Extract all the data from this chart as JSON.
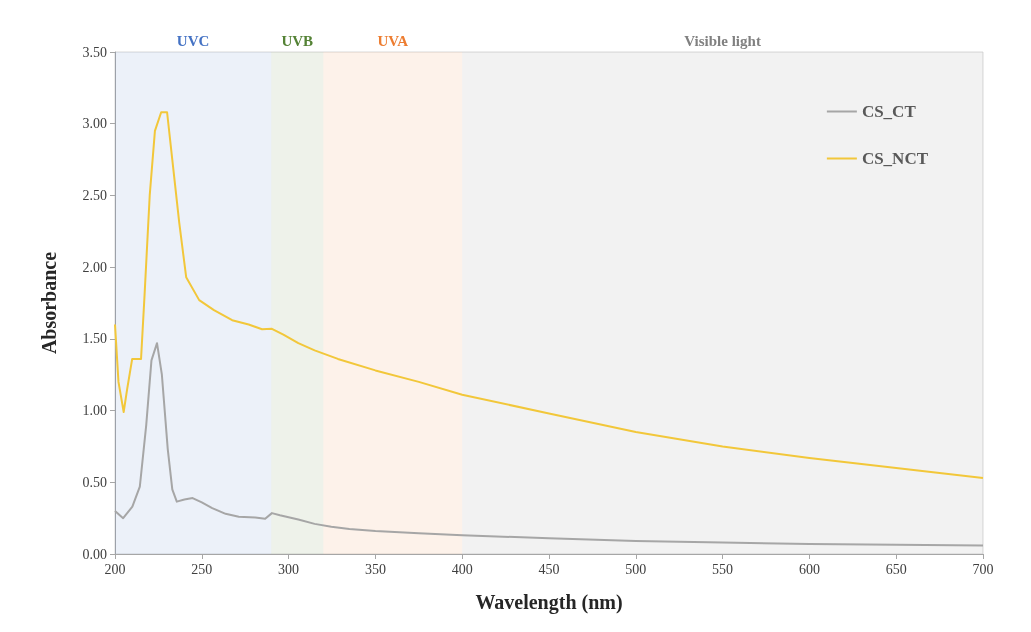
{
  "chart_data": {
    "type": "line",
    "xlabel": "Wavelength (nm)",
    "ylabel": "Absorbance",
    "xlim": [
      200,
      700
    ],
    "xticks": [
      200,
      250,
      300,
      350,
      400,
      450,
      500,
      550,
      600,
      650,
      700
    ],
    "ylim": [
      0,
      3.5
    ],
    "yticks": [
      {
        "value": 0,
        "label": "0.00"
      },
      {
        "value": 0.5,
        "label": "0.50"
      },
      {
        "value": 1,
        "label": "1.00"
      },
      {
        "value": 1.5,
        "label": "1.50"
      },
      {
        "value": 2,
        "label": "2.00"
      },
      {
        "value": 2.5,
        "label": "2.50"
      },
      {
        "value": 3,
        "label": "3.00"
      },
      {
        "value": 3.5,
        "label": "3.50"
      }
    ],
    "grid": false,
    "legend": "top right",
    "marker": "none",
    "line_style": "solid",
    "bands": [
      {
        "axis": "x",
        "from": 200,
        "to": 290,
        "label": "UVC",
        "color": "#4472c4"
      },
      {
        "axis": "x",
        "from": 290,
        "to": 320,
        "label": "UVB",
        "color": "#548235"
      },
      {
        "axis": "x",
        "from": 320,
        "to": 400,
        "label": "UVA",
        "color": "#ed7d31"
      },
      {
        "axis": "x",
        "from": 400,
        "to": 700,
        "label": "Visible light",
        "color": "#808080"
      }
    ],
    "series": [
      {
        "name": "CS_CT",
        "color": "#a6a6a6",
        "x": [
          200,
          204.7,
          210,
          214.3,
          218,
          221,
          224.2,
          227,
          230.4,
          233,
          235.6,
          240,
          244.7,
          250,
          256,
          263.7,
          271.3,
          280.8,
          286.5,
          290.4,
          295,
          305.6,
          315,
          324.6,
          335,
          350,
          375,
          400,
          450,
          500,
          550,
          600,
          650,
          700
        ],
        "values": [
          0.3,
          0.25,
          0.33,
          0.47,
          0.9,
          1.35,
          1.47,
          1.25,
          0.73,
          0.45,
          0.365,
          0.38,
          0.39,
          0.36,
          0.32,
          0.28,
          0.26,
          0.255,
          0.245,
          0.285,
          0.27,
          0.24,
          0.21,
          0.19,
          0.175,
          0.16,
          0.145,
          0.13,
          0.11,
          0.09,
          0.08,
          0.07,
          0.065,
          0.06
        ]
      },
      {
        "name": "CS_NCT",
        "color": "#f2c73a",
        "x": [
          200,
          202,
          205,
          207,
          209.9,
          215,
          217,
          220,
          223,
          226.6,
          230,
          233,
          237,
          241,
          248.5,
          257,
          267.5,
          277,
          284.7,
          290.4,
          297,
          305.6,
          315,
          328.4,
          350,
          375,
          400,
          450,
          500,
          550,
          600,
          650,
          700
        ],
        "values": [
          1.6,
          1.2,
          0.99,
          1.15,
          1.36,
          1.36,
          1.8,
          2.5,
          2.95,
          3.08,
          3.08,
          2.75,
          2.31,
          1.93,
          1.77,
          1.7,
          1.63,
          1.6,
          1.567,
          1.57,
          1.53,
          1.47,
          1.42,
          1.36,
          1.28,
          1.2,
          1.11,
          0.98,
          0.85,
          0.75,
          0.67,
          0.6,
          0.53
        ]
      }
    ]
  }
}
